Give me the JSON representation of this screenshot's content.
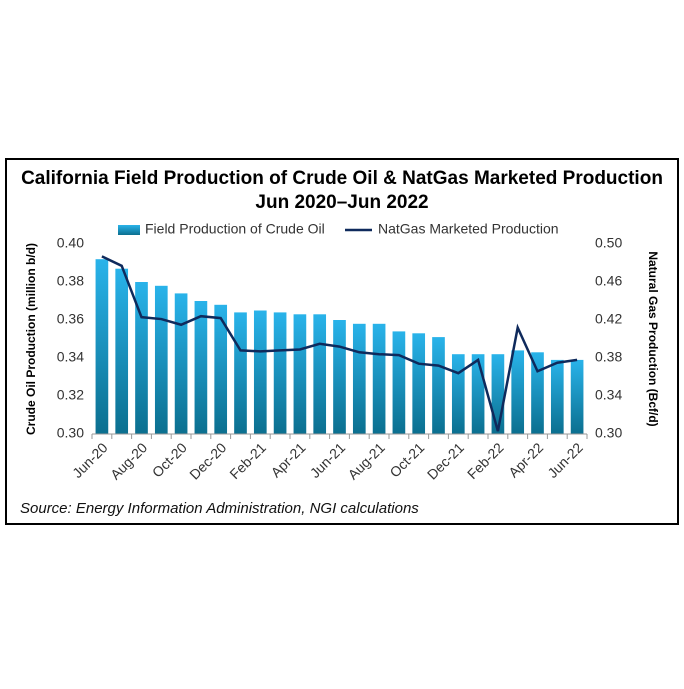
{
  "chart_data": {
    "type": "bar-line",
    "title": "California Field Production of Crude Oil & NatGas Marketed Production",
    "subtitle": "Jun 2020–Jun 2022",
    "y_label": "Crude Oil Production (million b/d)",
    "y2_label": "Natural Gas Production (Bcf/d)",
    "source": "Source: Energy Information Administration, NGI calculations",
    "categories": [
      "Jun-20",
      null,
      "Aug-20",
      null,
      "Oct-20",
      null,
      "Dec-20",
      null,
      "Feb-21",
      null,
      "Apr-21",
      null,
      "Jun-21",
      null,
      "Aug-21",
      null,
      "Oct-21",
      null,
      "Dec-21",
      null,
      "Feb-22",
      null,
      "Apr-22",
      null,
      "Jun-22"
    ],
    "series": [
      {
        "name": "Field Production of Crude Oil",
        "type": "bar",
        "color": "#29b3ea",
        "values": [
          0.392,
          0.387,
          0.38,
          0.378,
          0.374,
          0.37,
          0.368,
          0.364,
          0.365,
          0.364,
          0.363,
          0.363,
          0.36,
          0.358,
          0.358,
          0.354,
          0.353,
          0.351,
          0.342,
          0.342,
          0.342,
          0.344,
          0.343,
          0.339,
          0.339
        ]
      },
      {
        "name": "NatGas Marketed Production",
        "type": "line",
        "axis": "y2",
        "color": "#0f2a5c",
        "values": [
          0.487,
          0.477,
          0.423,
          0.421,
          0.415,
          0.424,
          0.422,
          0.388,
          0.387,
          0.388,
          0.389,
          0.395,
          0.392,
          0.386,
          0.384,
          0.383,
          0.374,
          0.372,
          0.364,
          0.378,
          0.303,
          0.412,
          0.366,
          0.375,
          0.378
        ]
      }
    ],
    "ylim": [
      0.3,
      0.4
    ],
    "yticks": [
      {
        "value": 0.3,
        "label": "0.30"
      },
      0.32,
      0.34,
      0.36,
      0.38,
      {
        "value": 0.4,
        "label": "0.40"
      }
    ],
    "y2lim": [
      0.3,
      0.5
    ],
    "y2ticks": [
      {
        "value": 0.3,
        "label": "0.30"
      },
      0.34,
      0.38,
      0.42,
      0.46,
      {
        "value": 0.5,
        "label": "0.50"
      }
    ],
    "grid": false
  }
}
